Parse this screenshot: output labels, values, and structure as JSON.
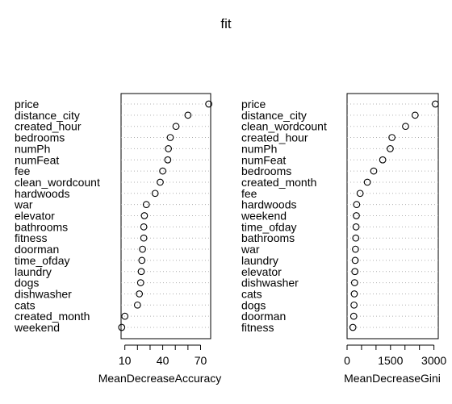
{
  "title": "fit",
  "chart_data": [
    {
      "type": "dotchart",
      "xlabel": "MeanDecreaseAccuracy",
      "xlim": [
        7,
        78
      ],
      "xticks": [
        10,
        20,
        30,
        40,
        50,
        60,
        70
      ],
      "xtick_labels": [
        "10",
        "",
        "",
        "40",
        "",
        "",
        "70"
      ],
      "grid": "dotted horizontal",
      "categories": [
        "price",
        "distance_city",
        "created_hour",
        "bedrooms",
        "numPh",
        "numFeat",
        "fee",
        "clean_wordcount",
        "hardwoods",
        "war",
        "elevator",
        "bathrooms",
        "fitness",
        "doorman",
        "time_ofday",
        "laundry",
        "dogs",
        "dishwasher",
        "cats",
        "created_month",
        "weekend"
      ],
      "values": [
        76.5,
        60,
        50.5,
        46,
        44.5,
        44,
        40,
        38,
        34,
        27,
        25.5,
        25,
        25,
        24,
        23.5,
        23,
        22.5,
        21.5,
        20,
        10,
        7.5
      ]
    },
    {
      "type": "dotchart",
      "xlabel": "MeanDecreaseGini",
      "xlim": [
        0,
        3150
      ],
      "xticks": [
        0,
        500,
        1000,
        1500,
        2000,
        2500,
        3000
      ],
      "xtick_labels": [
        "0",
        "",
        "",
        "1500",
        "",
        "",
        "3000"
      ],
      "grid": "dotted horizontal",
      "categories": [
        "price",
        "distance_city",
        "clean_wordcount",
        "created_hour",
        "numPh",
        "numFeat",
        "bedrooms",
        "created_month",
        "fee",
        "hardwoods",
        "weekend",
        "time_ofday",
        "bathrooms",
        "war",
        "laundry",
        "elevator",
        "dishwasher",
        "cats",
        "dogs",
        "doorman",
        "fitness"
      ],
      "values": [
        3050,
        2350,
        2020,
        1550,
        1490,
        1230,
        920,
        700,
        450,
        330,
        320,
        310,
        300,
        290,
        280,
        270,
        260,
        250,
        240,
        230,
        200
      ]
    }
  ]
}
